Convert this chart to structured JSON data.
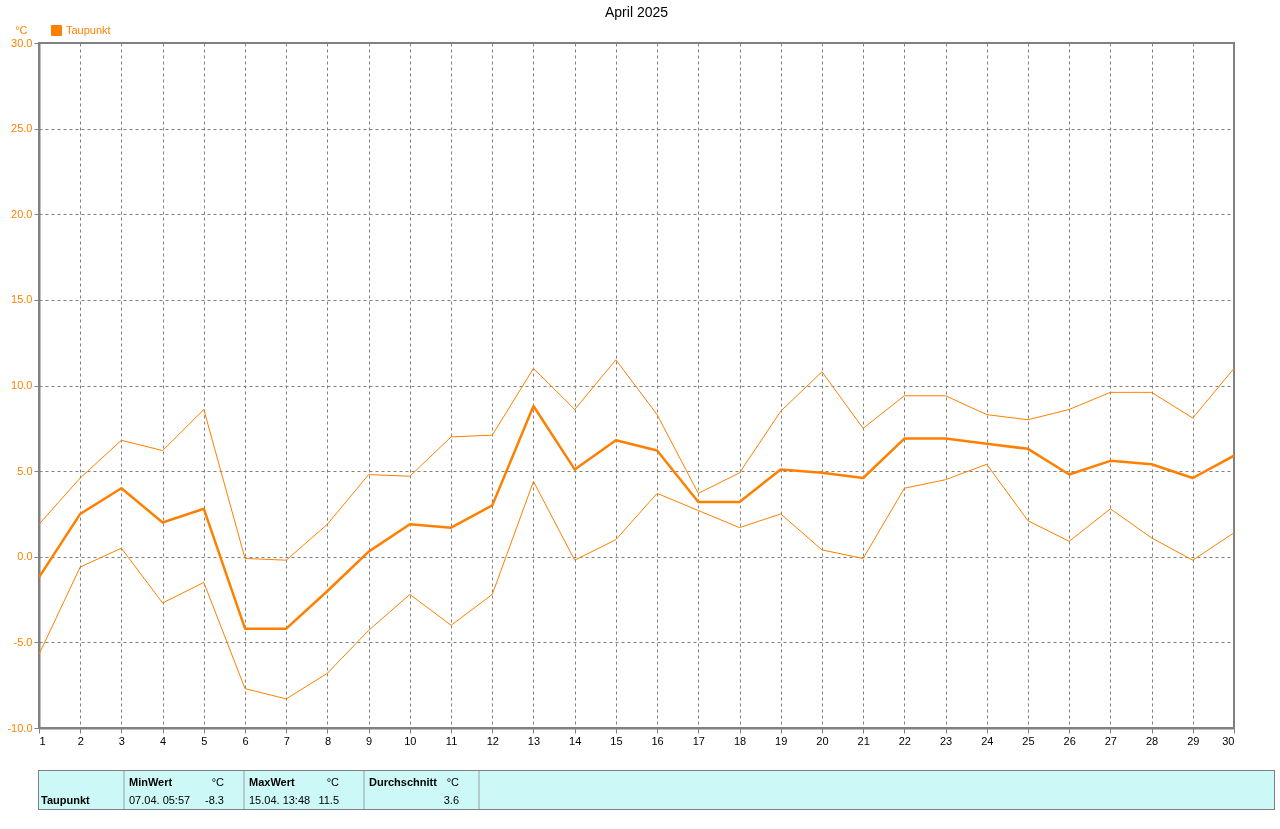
{
  "chart_data": {
    "type": "line",
    "title": "April 2025",
    "ylabel": "°C",
    "x": [
      1,
      2,
      3,
      4,
      5,
      6,
      7,
      8,
      9,
      10,
      11,
      12,
      13,
      14,
      15,
      16,
      17,
      18,
      19,
      20,
      21,
      22,
      23,
      24,
      25,
      26,
      27,
      28,
      29,
      30
    ],
    "series": [
      {
        "name": "Taupunkt",
        "color": "#ff8000",
        "values": [
          -1.2,
          2.5,
          4.0,
          2.0,
          2.8,
          -4.2,
          -4.2,
          -2.0,
          0.3,
          1.9,
          1.7,
          3.0,
          8.8,
          5.1,
          6.8,
          6.2,
          3.2,
          3.2,
          5.1,
          4.9,
          4.6,
          6.9,
          6.9,
          6.6,
          6.3,
          4.8,
          5.6,
          5.4,
          4.6,
          5.9
        ]
      },
      {
        "color": "#ff8000",
        "values": [
          1.9,
          4.6,
          6.8,
          6.2,
          8.6,
          -0.1,
          -0.2,
          1.9,
          4.8,
          4.7,
          7.0,
          7.1,
          11.0,
          8.6,
          11.5,
          8.3,
          3.7,
          4.9,
          8.5,
          10.8,
          7.5,
          9.4,
          9.4,
          8.3,
          8.0,
          8.6,
          9.6,
          9.6,
          8.1,
          11.0
        ]
      },
      {
        "color": "#ff8000",
        "values": [
          -5.7,
          -0.6,
          0.5,
          -2.7,
          -1.5,
          -7.7,
          -8.3,
          -6.8,
          -4.3,
          -2.2,
          -4.0,
          -2.2,
          4.4,
          -0.2,
          1.0,
          3.7,
          2.7,
          1.7,
          2.5,
          0.4,
          -0.1,
          4.0,
          4.5,
          5.4,
          2.1,
          0.9,
          2.8,
          1.1,
          -0.2,
          1.4
        ]
      }
    ],
    "xlim": [
      1,
      30
    ],
    "xticks": [
      1,
      2,
      3,
      4,
      5,
      6,
      7,
      8,
      9,
      10,
      11,
      12,
      13,
      14,
      15,
      16,
      17,
      18,
      19,
      20,
      21,
      22,
      23,
      24,
      25,
      26,
      27,
      28,
      29,
      30
    ],
    "ylim": [
      -10,
      30
    ],
    "yticks": [
      {
        "value": -10,
        "label": "-10.0"
      },
      {
        "value": -5,
        "label": "-5.0"
      },
      {
        "value": 0,
        "label": "0.0"
      },
      {
        "value": 5,
        "label": "5.0"
      },
      {
        "value": 10,
        "label": "10.0"
      },
      {
        "value": 15,
        "label": "15.0"
      },
      {
        "value": 20,
        "label": "20.0"
      },
      {
        "value": 25,
        "label": "25.0"
      },
      {
        "value": 30,
        "label": "30.0"
      }
    ],
    "grid": true,
    "legend": "top left",
    "marker": "none",
    "line_style": "solid",
    "annotations": [
      "MinWert",
      "°C",
      "MaxWert",
      "°C",
      "Durchschnitt",
      "°C",
      "Taupunkt",
      "07.04.  05:57",
      "-8.3",
      "15.04.  13:48",
      "11.5",
      "3.6"
    ]
  }
}
